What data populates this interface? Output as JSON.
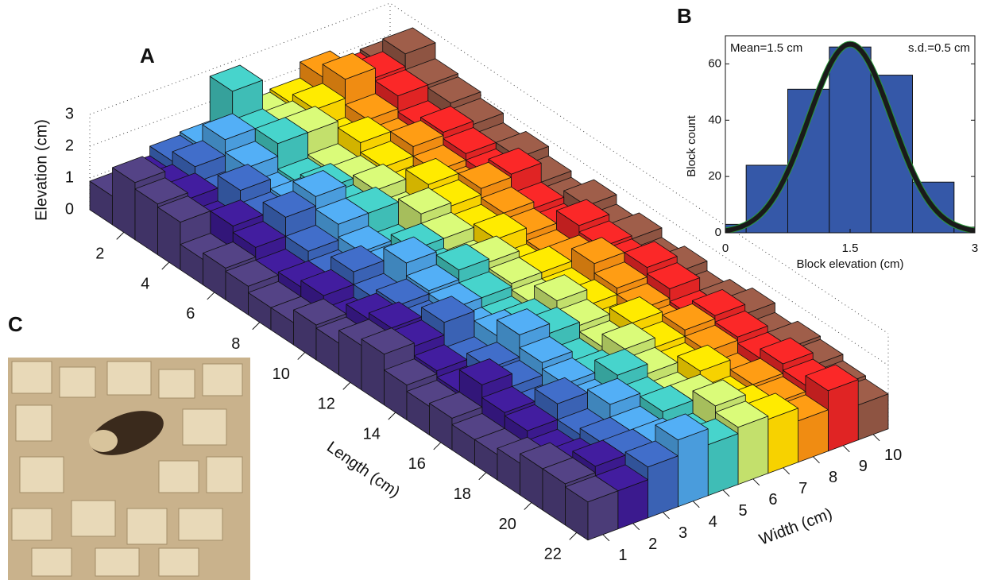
{
  "chart_data": [
    {
      "type": "bar3d",
      "label": "A",
      "zlabel": "Elevation (cm)",
      "xlabel": "Length (cm)",
      "ylabel": "Width (cm)",
      "x": [
        1,
        2,
        3,
        4,
        5,
        6,
        7,
        8,
        9,
        10,
        11,
        12,
        13,
        14,
        15,
        16,
        17,
        18,
        19,
        20,
        21,
        22
      ],
      "xlim": [
        0,
        22
      ],
      "xticks": [
        2,
        4,
        6,
        8,
        10,
        12,
        14,
        16,
        18,
        20,
        22
      ],
      "zlim": [
        0,
        3
      ],
      "zticks": [
        0,
        1,
        2,
        3
      ],
      "grid": true,
      "series": [
        {
          "name": "1",
          "color": "#4b3c78",
          "values": [
            0.9,
            1.8,
            1.6,
            1.5,
            0.8,
            1.0,
            0.9,
            0.7,
            0.7,
            1.1,
            1.0,
            1.4,
            1.6,
            1.1,
            0.9,
            1.0,
            0.8,
            0.8,
            1.0,
            1.3,
            1.3,
            1.2
          ]
        },
        {
          "name": "2",
          "color": "#3b1a8e",
          "values": [
            1.0,
            1.2,
            1.4,
            1.0,
            1.5,
            1.3,
            0.9,
            1.0,
            1.2,
            0.8,
            1.4,
            1.6,
            1.5,
            1.2,
            1.0,
            1.7,
            1.3,
            1.2,
            0.9,
            1.1,
            1.5,
            1.2
          ]
        },
        {
          "name": "3",
          "color": "#3a62b4",
          "values": [
            1.3,
            1.6,
            1.1,
            1.8,
            1.4,
            1.9,
            1.3,
            1.0,
            1.6,
            1.2,
            1.5,
            1.3,
            1.9,
            1.1,
            1.4,
            1.3,
            1.0,
            1.7,
            1.2,
            1.4,
            1.5,
            1.6
          ]
        },
        {
          "name": "4",
          "color": "#4a9cdc",
          "values": [
            1.4,
            2.1,
            1.7,
            1.2,
            1.5,
            2.2,
            1.8,
            1.4,
            1.3,
            2.0,
            1.6,
            1.5,
            1.2,
            1.6,
            2.1,
            1.7,
            1.5,
            1.3,
            1.8,
            1.4,
            1.5,
            2.1
          ]
        },
        {
          "name": "5",
          "color": "#3fbdb6",
          "values": [
            2.8,
            1.9,
            2.1,
            1.3,
            1.6,
            1.4,
            1.8,
            1.1,
            1.6,
            1.3,
            1.9,
            1.5,
            1.2,
            1.6,
            1.8,
            1.3,
            1.4,
            1.9,
            1.5,
            1.7,
            1.3,
            1.6
          ]
        },
        {
          "name": "6",
          "color": "#c3e06c",
          "values": [
            1.6,
            1.8,
            2.1,
            1.4,
            1.5,
            1.7,
            1.3,
            1.9,
            1.6,
            1.2,
            1.8,
            1.6,
            1.4,
            2.0,
            1.7,
            1.5,
            1.9,
            1.6,
            1.3,
            1.7,
            2.0,
            1.8
          ]
        },
        {
          "name": "7",
          "color": "#f7d200",
          "values": [
            1.7,
            2.0,
            1.4,
            1.9,
            1.6,
            1.3,
            2.0,
            1.8,
            1.5,
            1.7,
            1.2,
            1.6,
            1.4,
            1.5,
            1.2,
            1.9,
            1.6,
            1.4,
            1.8,
            1.3,
            1.5,
            1.7
          ]
        },
        {
          "name": "8",
          "color": "#f08c12",
          "values": [
            2.2,
            2.6,
            1.8,
            1.5,
            1.9,
            1.6,
            1.4,
            2.0,
            1.7,
            1.5,
            1.3,
            1.6,
            2.0,
            1.7,
            1.5,
            1.3,
            1.8,
            1.6,
            1.2,
            1.5,
            1.4,
            1.3
          ]
        },
        {
          "name": "9",
          "color": "#e02424",
          "values": [
            1.8,
            2.3,
            2.2,
            1.7,
            2.0,
            1.8,
            1.6,
            2.1,
            1.5,
            1.3,
            1.9,
            1.7,
            1.6,
            2.0,
            1.8,
            1.4,
            1.9,
            1.7,
            1.5,
            1.8,
            1.6,
            1.9
          ]
        },
        {
          "name": "10",
          "color": "#8e5442",
          "values": [
            1.9,
            2.7,
            2.2,
            2.1,
            1.9,
            1.6,
            1.8,
            1.5,
            1.3,
            1.7,
            1.4,
            1.6,
            1.3,
            1.5,
            1.2,
            1.4,
            1.6,
            1.3,
            1.5,
            1.4,
            1.2,
            1.1
          ]
        }
      ]
    },
    {
      "type": "histogram",
      "label": "B",
      "xlabel": "Block elevation (cm)",
      "ylabel": "Block count",
      "bins": [
        -0.25,
        0.25,
        0.75,
        1.25,
        1.75,
        2.25,
        2.75,
        3.25
      ],
      "values": [
        3,
        24,
        51,
        66,
        56,
        18,
        2
      ],
      "color": "#3558a8",
      "xlim": [
        0,
        3
      ],
      "xticks": [
        0,
        1.5,
        3
      ],
      "ylim": [
        0,
        70
      ],
      "yticks": [
        0,
        20,
        40,
        60
      ],
      "annotations": [
        "Mean=1.5 cm",
        "s.d.=0.5 cm"
      ],
      "fit": {
        "mean": 1.5,
        "sd": 0.5,
        "peak": 67,
        "color": "#1a1a1a",
        "edge_color": "#2a9a3a"
      }
    }
  ],
  "photo_panel": {
    "label": "C"
  }
}
